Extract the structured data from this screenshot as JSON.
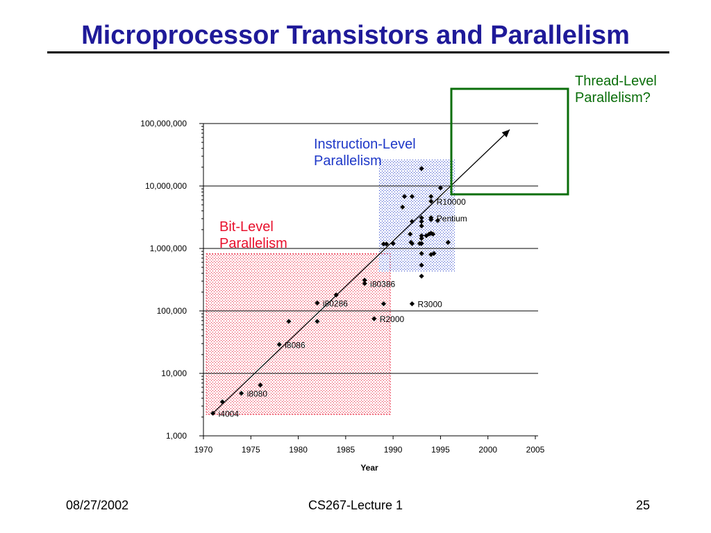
{
  "slide": {
    "title": "Microprocessor Transistors and Parallelism",
    "footer_date": "08/27/2002",
    "footer_course": "CS267-Lecture 1",
    "footer_page": "25"
  },
  "colors": {
    "title": "#1f1a99",
    "bit_level": "#e8112d",
    "instruction_level": "#1f39c8",
    "thread_level": "#0a6e0a"
  },
  "chart_data": {
    "type": "scatter",
    "title": "",
    "xlabel": "Year",
    "ylabel": "",
    "xlim": [
      1970,
      2005
    ],
    "ylim": [
      1000,
      100000000
    ],
    "yscale": "log",
    "x_ticks": [
      "1970",
      "1975",
      "1980",
      "1985",
      "1990",
      "1995",
      "2000",
      "2005"
    ],
    "y_ticks": [
      "1,000",
      "10,000",
      "100,000",
      "1,000,000",
      "10,000,000",
      "100,000,000"
    ],
    "grid": "horizontal major lines",
    "series": [
      {
        "points": [
          {
            "x": 1971,
            "y": 2300
          },
          {
            "x": 1972,
            "y": 3500
          },
          {
            "x": 1974,
            "y": 4800
          },
          {
            "x": 1976,
            "y": 6500
          },
          {
            "x": 1978,
            "y": 29000
          },
          {
            "x": 1979,
            "y": 68000
          },
          {
            "x": 1982,
            "y": 134000
          },
          {
            "x": 1982,
            "y": 68000
          },
          {
            "x": 1984,
            "y": 180000
          },
          {
            "x": 1987,
            "y": 275000
          },
          {
            "x": 1987,
            "y": 310000
          },
          {
            "x": 1988,
            "y": 75000
          },
          {
            "x": 1989,
            "y": 130000
          },
          {
            "x": 1992,
            "y": 130000
          },
          {
            "x": 1989,
            "y": 1180000
          },
          {
            "x": 1989.3,
            "y": 1180000
          },
          {
            "x": 1990,
            "y": 1200000
          },
          {
            "x": 1991,
            "y": 4600000
          },
          {
            "x": 1991.2,
            "y": 6800000
          },
          {
            "x": 1992,
            "y": 6800000
          },
          {
            "x": 1992,
            "y": 2700000
          },
          {
            "x": 1991.8,
            "y": 1700000
          },
          {
            "x": 1992,
            "y": 1200000
          },
          {
            "x": 1991.9,
            "y": 1250000
          },
          {
            "x": 1992.8,
            "y": 1200000
          },
          {
            "x": 1993,
            "y": 1200000
          },
          {
            "x": 1993,
            "y": 1450000
          },
          {
            "x": 1993,
            "y": 1600000
          },
          {
            "x": 1993,
            "y": 2300000
          },
          {
            "x": 1993,
            "y": 2700000
          },
          {
            "x": 1993,
            "y": 3100000
          },
          {
            "x": 1993,
            "y": 830000
          },
          {
            "x": 1993,
            "y": 540000
          },
          {
            "x": 1993,
            "y": 360000
          },
          {
            "x": 1993,
            "y": 19000000
          },
          {
            "x": 1993.5,
            "y": 1600000
          },
          {
            "x": 1993.8,
            "y": 1700000
          },
          {
            "x": 1994,
            "y": 1750000
          },
          {
            "x": 1994.2,
            "y": 1700000
          },
          {
            "x": 1994,
            "y": 2900000
          },
          {
            "x": 1994,
            "y": 3100000
          },
          {
            "x": 1994,
            "y": 5700000
          },
          {
            "x": 1994,
            "y": 6800000
          },
          {
            "x": 1994,
            "y": 800000
          },
          {
            "x": 1994.3,
            "y": 830000
          },
          {
            "x": 1994.7,
            "y": 2800000
          },
          {
            "x": 1995,
            "y": 9300000
          },
          {
            "x": 1995.8,
            "y": 1250000
          }
        ]
      }
    ],
    "trend_line": {
      "from": {
        "x": 1971,
        "y": 2300
      },
      "to": {
        "x": 2002.3,
        "y": 80000000
      }
    },
    "point_labels": [
      {
        "text": "i4004",
        "x": 1971,
        "y": 2300
      },
      {
        "text": "i8080",
        "x": 1974,
        "y": 4800
      },
      {
        "text": "i8086",
        "x": 1978,
        "y": 29000
      },
      {
        "text": "i80286",
        "x": 1982,
        "y": 134000
      },
      {
        "text": "i80386",
        "x": 1987,
        "y": 275000
      },
      {
        "text": "R2000",
        "x": 1988,
        "y": 75000
      },
      {
        "text": "R3000",
        "x": 1992,
        "y": 130000
      },
      {
        "text": "Pentium",
        "x": 1994,
        "y": 3100000
      },
      {
        "text": "R10000",
        "x": 1994,
        "y": 5700000
      }
    ],
    "regions": [
      {
        "name": "bit-level",
        "label": [
          "Bit-Level",
          "Parallelism"
        ],
        "x": [
          1970.3,
          1989.7
        ],
        "y": [
          2200,
          820000
        ]
      },
      {
        "name": "instruction-level",
        "label": [
          "Instruction-Level",
          "Parallelism"
        ],
        "x": [
          1988.5,
          1996.5
        ],
        "y": [
          430000,
          27000000
        ]
      }
    ],
    "outside_box": {
      "name": "thread-level",
      "label": [
        "Thread-Level",
        "Parallelism?"
      ]
    }
  }
}
